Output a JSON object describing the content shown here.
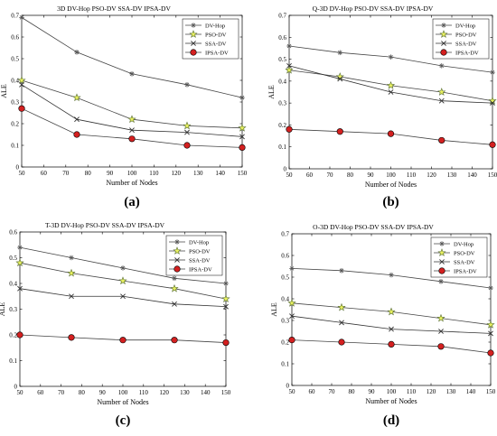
{
  "colors": {
    "dv_hop": "#555555",
    "pso_dv_marker": "#e8f060",
    "ssa_dv": "#333333",
    "ipsa_dv_marker": "#d42020",
    "axis": "#000000"
  },
  "chart_data": [
    {
      "type": "line",
      "panel_label": "(a)",
      "title": "3D DV-Hop PSO-DV SSA-DV IPSA-DV",
      "xlabel": "Number of Nodes",
      "ylabel": "ALE",
      "xlim": [
        50,
        150
      ],
      "ylim": [
        0,
        0.7
      ],
      "xticks": [
        50,
        60,
        70,
        80,
        90,
        100,
        110,
        120,
        130,
        140,
        150
      ],
      "yticks": [
        0,
        0.1,
        0.2,
        0.3,
        0.4,
        0.5,
        0.6,
        0.7
      ],
      "legend_position": "top-right",
      "x": [
        50,
        75,
        100,
        125,
        150
      ],
      "series": [
        {
          "name": "DV-Hop",
          "marker": "asterisk",
          "values": [
            0.69,
            0.53,
            0.43,
            0.38,
            0.32
          ]
        },
        {
          "name": "PSO-DV",
          "marker": "star",
          "values": [
            0.4,
            0.32,
            0.22,
            0.19,
            0.18
          ]
        },
        {
          "name": "SSA-DV",
          "marker": "x",
          "values": [
            0.38,
            0.22,
            0.17,
            0.16,
            0.14
          ]
        },
        {
          "name": "IPSA-DV",
          "marker": "circle",
          "values": [
            0.27,
            0.15,
            0.13,
            0.1,
            0.09
          ]
        }
      ]
    },
    {
      "type": "line",
      "panel_label": "(b)",
      "title": "Q-3D DV-Hop PSO-DV SSA-DV IPSA-DV",
      "xlabel": "Number of Nodes",
      "ylabel": "ALE",
      "xlim": [
        50,
        150
      ],
      "ylim": [
        0,
        0.7
      ],
      "xticks": [
        50,
        60,
        70,
        80,
        90,
        100,
        110,
        120,
        130,
        140,
        150
      ],
      "yticks": [
        0,
        0.1,
        0.2,
        0.3,
        0.4,
        0.5,
        0.6,
        0.7
      ],
      "legend_position": "top-right",
      "x": [
        50,
        75,
        100,
        125,
        150
      ],
      "series": [
        {
          "name": "DV-Hop",
          "marker": "asterisk",
          "values": [
            0.56,
            0.53,
            0.51,
            0.47,
            0.44
          ]
        },
        {
          "name": "PSO-DV",
          "marker": "star",
          "values": [
            0.45,
            0.42,
            0.38,
            0.35,
            0.31
          ]
        },
        {
          "name": "SSA-DV",
          "marker": "x",
          "values": [
            0.47,
            0.41,
            0.35,
            0.31,
            0.3
          ]
        },
        {
          "name": "IPSA-DV",
          "marker": "circle",
          "values": [
            0.18,
            0.17,
            0.16,
            0.13,
            0.11
          ]
        }
      ]
    },
    {
      "type": "line",
      "panel_label": "(c)",
      "title": "T-3D DV-Hop PSO-DV SSA-DV IPSA-DV",
      "xlabel": "Number of Nodes",
      "ylabel": "ALE",
      "xlim": [
        50,
        150
      ],
      "ylim": [
        0,
        0.6
      ],
      "xticks": [
        50,
        60,
        70,
        80,
        90,
        100,
        110,
        120,
        130,
        140,
        150
      ],
      "yticks": [
        0,
        0.1,
        0.2,
        0.3,
        0.4,
        0.5,
        0.6
      ],
      "legend_position": "top-right",
      "x": [
        50,
        75,
        100,
        125,
        150
      ],
      "series": [
        {
          "name": "DV-Hop",
          "marker": "asterisk",
          "values": [
            0.54,
            0.5,
            0.46,
            0.42,
            0.4
          ]
        },
        {
          "name": "PSO-DV",
          "marker": "star",
          "values": [
            0.48,
            0.44,
            0.41,
            0.38,
            0.34
          ]
        },
        {
          "name": "SSA-DV",
          "marker": "x",
          "values": [
            0.38,
            0.35,
            0.35,
            0.32,
            0.31
          ]
        },
        {
          "name": "IPSA-DV",
          "marker": "circle",
          "values": [
            0.2,
            0.19,
            0.18,
            0.18,
            0.17
          ]
        }
      ]
    },
    {
      "type": "line",
      "panel_label": "(d)",
      "title": "O-3D DV-Hop PSO-DV SSA-DV IPSA-DV",
      "xlabel": "Number of Nodes",
      "ylabel": "ALE",
      "xlim": [
        50,
        150
      ],
      "ylim": [
        0,
        0.7
      ],
      "xticks": [
        50,
        60,
        70,
        80,
        90,
        100,
        110,
        120,
        130,
        140,
        150
      ],
      "yticks": [
        0,
        0.1,
        0.2,
        0.3,
        0.4,
        0.5,
        0.6,
        0.7
      ],
      "legend_position": "top-right",
      "x": [
        50,
        75,
        100,
        125,
        150
      ],
      "series": [
        {
          "name": "DV-Hop",
          "marker": "asterisk",
          "values": [
            0.54,
            0.53,
            0.51,
            0.48,
            0.45
          ]
        },
        {
          "name": "PSO-DV",
          "marker": "star",
          "values": [
            0.38,
            0.36,
            0.34,
            0.31,
            0.28
          ]
        },
        {
          "name": "SSA-DV",
          "marker": "x",
          "values": [
            0.32,
            0.29,
            0.26,
            0.25,
            0.24
          ]
        },
        {
          "name": "IPSA-DV",
          "marker": "circle",
          "values": [
            0.21,
            0.2,
            0.19,
            0.18,
            0.15
          ]
        }
      ]
    }
  ]
}
